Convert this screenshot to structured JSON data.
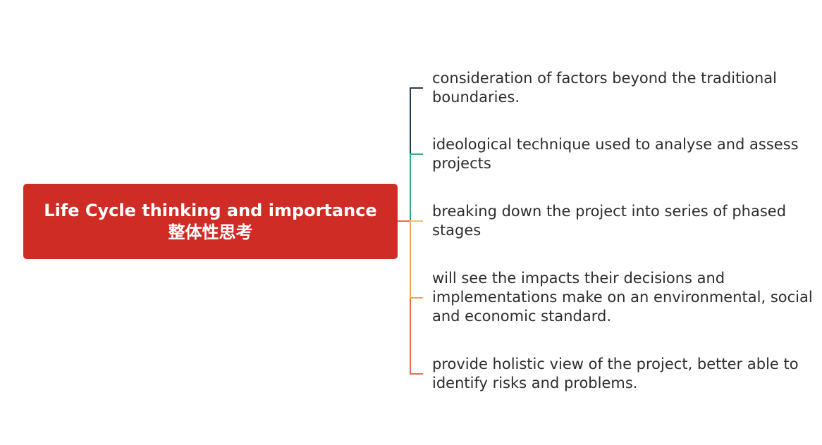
{
  "root": {
    "title": "Life Cycle thinking and importance",
    "subtitle": "整体性思考",
    "color": "#ce2c25"
  },
  "branches": [
    {
      "text": "consideration of factors beyond the traditional boundaries.",
      "color": "#2b3f52"
    },
    {
      "text": "ideological technique used to analyse and assess projects",
      "color": "#3aa48c"
    },
    {
      "text": "breaking down the project into series of phased stages",
      "color": "#f0c75e"
    },
    {
      "text": "will see the impacts their decisions and implementations make on an environmental, social and economic standard.",
      "color": "#efa65a"
    },
    {
      "text": "provide holistic view of the project, better able to identify risks and problems.",
      "color": "#e4704f"
    }
  ]
}
